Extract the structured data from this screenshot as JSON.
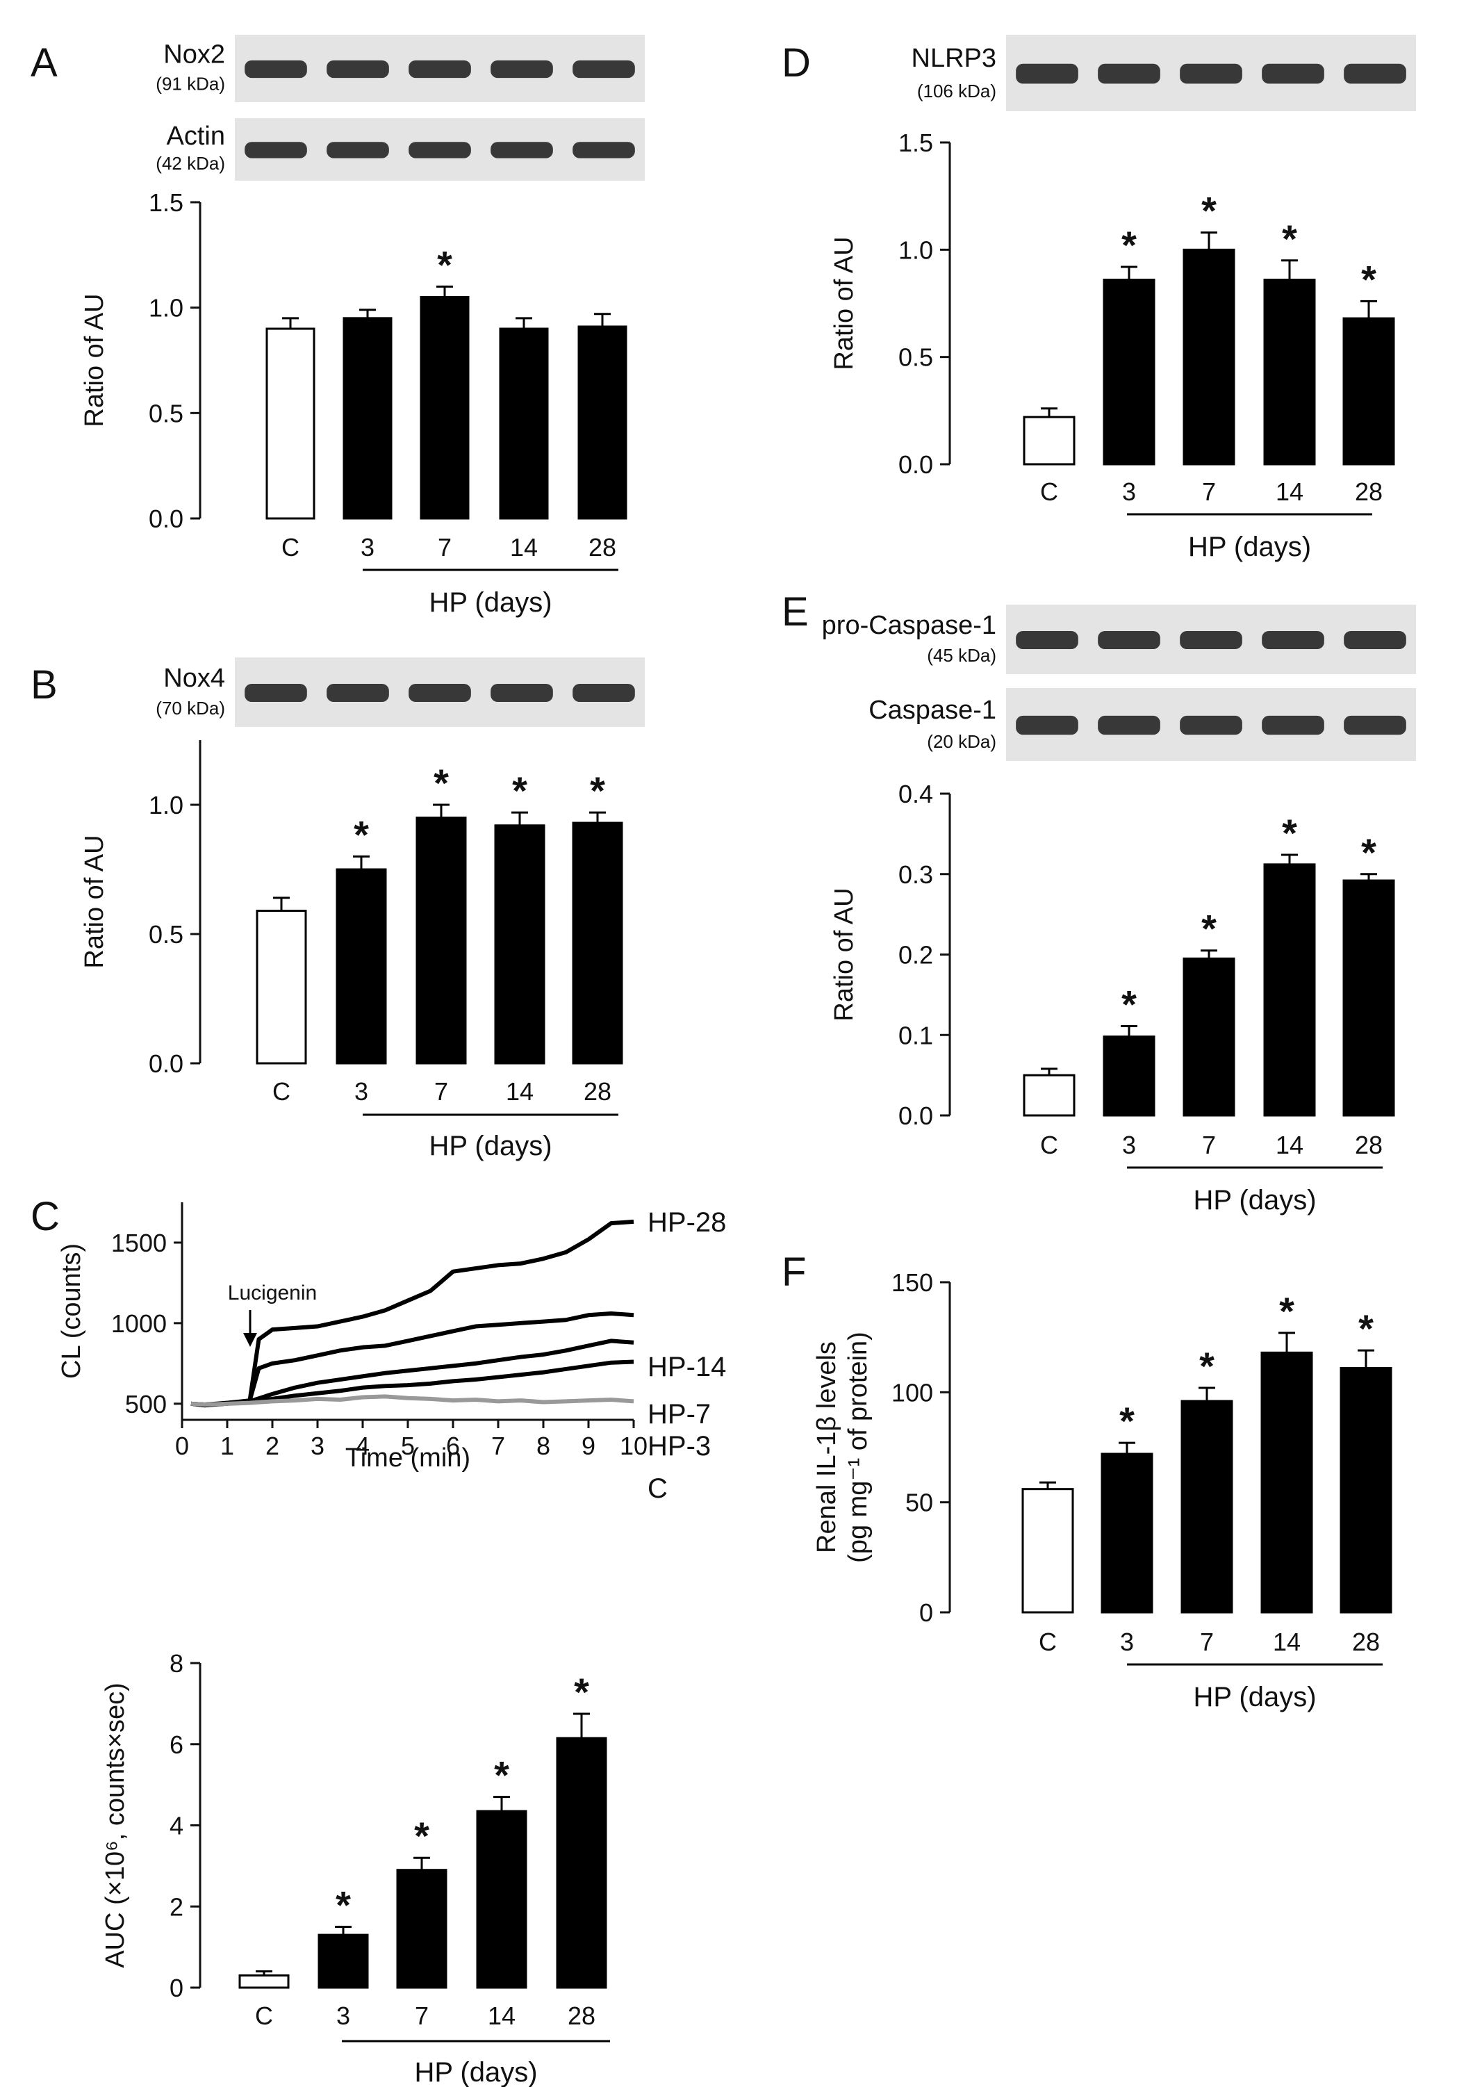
{
  "chart_data": [
    {
      "panel": "A",
      "type": "bar",
      "categories": [
        "C",
        "3",
        "7",
        "14",
        "28"
      ],
      "values": [
        0.9,
        0.95,
        1.05,
        0.9,
        0.91
      ],
      "errors": [
        0.05,
        0.04,
        0.05,
        0.05,
        0.06
      ],
      "significant": [
        false,
        false,
        true,
        false,
        false
      ],
      "ylabel": "Ratio of AU",
      "ylim": [
        0,
        1.5
      ],
      "yticks": [
        "0.0",
        "0.5",
        "1.0",
        "1.5"
      ],
      "group_label": "HP (days)",
      "blots": [
        {
          "name": "Nox2",
          "kda": "(91 kDa)"
        },
        {
          "name": "Actin",
          "kda": "(42 kDa)"
        }
      ]
    },
    {
      "panel": "B",
      "type": "bar",
      "categories": [
        "C",
        "3",
        "7",
        "14",
        "28"
      ],
      "values": [
        0.59,
        0.75,
        0.95,
        0.92,
        0.93
      ],
      "errors": [
        0.05,
        0.05,
        0.05,
        0.05,
        0.04
      ],
      "significant": [
        false,
        true,
        true,
        true,
        true
      ],
      "ylabel": "Ratio of AU",
      "ylim": [
        0,
        1.25
      ],
      "yticks": [
        "0.0",
        "0.5",
        "1.0"
      ],
      "group_label": "HP (days)",
      "blots": [
        {
          "name": "Nox4",
          "kda": "(70 kDa)"
        }
      ]
    },
    {
      "panel": "C",
      "type": "line",
      "xlabel": "Time (min)",
      "ylabel": "CL (counts)",
      "xlim": [
        0,
        10
      ],
      "ylim": [
        400,
        1750
      ],
      "xticks": [
        "0",
        "1",
        "2",
        "3",
        "4",
        "5",
        "6",
        "7",
        "8",
        "9",
        "10"
      ],
      "yticks": [
        "500",
        "1000",
        "1500"
      ],
      "annotation": "Lucigenin",
      "series": [
        {
          "name": "HP-28",
          "x": [
            0.2,
            0.5,
            1.0,
            1.5,
            1.7,
            2.0,
            2.5,
            3.0,
            3.5,
            4.0,
            4.5,
            5.0,
            5.5,
            6.0,
            6.5,
            7.0,
            7.5,
            8.0,
            8.5,
            9.0,
            9.5,
            10.0
          ],
          "y": [
            500,
            490,
            500,
            520,
            900,
            960,
            970,
            980,
            1010,
            1040,
            1080,
            1140,
            1200,
            1320,
            1340,
            1360,
            1370,
            1400,
            1440,
            1520,
            1620,
            1630
          ]
        },
        {
          "name": "HP-14",
          "x": [
            0.2,
            0.5,
            1.0,
            1.5,
            1.7,
            2.0,
            2.5,
            3.0,
            3.5,
            4.0,
            4.5,
            5.0,
            5.5,
            6.0,
            6.5,
            7.0,
            7.5,
            8.0,
            8.5,
            9.0,
            9.5,
            10.0
          ],
          "y": [
            500,
            495,
            505,
            520,
            720,
            750,
            770,
            800,
            830,
            850,
            860,
            890,
            920,
            950,
            980,
            990,
            1000,
            1010,
            1020,
            1050,
            1060,
            1050
          ]
        },
        {
          "name": "HP-7",
          "x": [
            0.2,
            0.5,
            1.0,
            1.5,
            2.0,
            2.5,
            3.0,
            3.5,
            4.0,
            4.5,
            5.0,
            5.5,
            6.0,
            6.5,
            7.0,
            7.5,
            8.0,
            8.5,
            9.0,
            9.5,
            10.0
          ],
          "y": [
            500,
            490,
            505,
            515,
            560,
            600,
            630,
            650,
            670,
            690,
            705,
            720,
            735,
            750,
            770,
            790,
            805,
            830,
            860,
            890,
            880
          ]
        },
        {
          "name": "HP-3",
          "x": [
            0.2,
            0.5,
            1.0,
            1.5,
            2.0,
            2.5,
            3.0,
            3.5,
            4.0,
            4.5,
            5.0,
            5.5,
            6.0,
            6.5,
            7.0,
            7.5,
            8.0,
            8.5,
            9.0,
            9.5,
            10.0
          ],
          "y": [
            500,
            495,
            500,
            510,
            530,
            550,
            565,
            580,
            600,
            610,
            615,
            625,
            640,
            650,
            665,
            680,
            695,
            715,
            735,
            755,
            760
          ]
        },
        {
          "name": "C",
          "color": "#999999",
          "x": [
            0.2,
            0.5,
            1.0,
            1.5,
            2.0,
            2.5,
            3.0,
            3.5,
            4.0,
            4.5,
            5.0,
            5.5,
            6.0,
            6.5,
            7.0,
            7.5,
            8.0,
            8.5,
            9.0,
            9.5,
            10.0
          ],
          "y": [
            500,
            495,
            500,
            505,
            515,
            520,
            530,
            525,
            540,
            545,
            535,
            530,
            520,
            525,
            515,
            520,
            510,
            515,
            520,
            525,
            515
          ]
        }
      ]
    },
    {
      "panel": "C2",
      "type": "bar",
      "categories": [
        "C",
        "3",
        "7",
        "14",
        "28"
      ],
      "values": [
        0.3,
        1.3,
        2.9,
        4.35,
        6.15
      ],
      "errors": [
        0.1,
        0.2,
        0.3,
        0.35,
        0.6
      ],
      "significant": [
        false,
        true,
        true,
        true,
        true
      ],
      "ylabel": "AUC (×10⁶, counts×sec)",
      "ylim": [
        0,
        8
      ],
      "yticks": [
        "0",
        "2",
        "4",
        "6",
        "8"
      ],
      "group_label": "HP (days)"
    },
    {
      "panel": "D",
      "type": "bar",
      "categories": [
        "C",
        "3",
        "7",
        "14",
        "28"
      ],
      "values": [
        0.22,
        0.86,
        1.0,
        0.86,
        0.68
      ],
      "errors": [
        0.04,
        0.06,
        0.08,
        0.09,
        0.08
      ],
      "significant": [
        false,
        true,
        true,
        true,
        true
      ],
      "ylabel": "Ratio of AU",
      "ylim": [
        0,
        1.5
      ],
      "yticks": [
        "0.0",
        "0.5",
        "1.0",
        "1.5"
      ],
      "group_label": "HP (days)",
      "blots": [
        {
          "name": "NLRP3",
          "kda": "(106 kDa)"
        }
      ]
    },
    {
      "panel": "E",
      "type": "bar",
      "categories": [
        "C",
        "3",
        "7",
        "14",
        "28"
      ],
      "values": [
        0.05,
        0.098,
        0.195,
        0.312,
        0.292
      ],
      "errors": [
        0.008,
        0.013,
        0.01,
        0.012,
        0.008
      ],
      "significant": [
        false,
        true,
        true,
        true,
        true
      ],
      "ylabel": "Ratio of AU",
      "ylim": [
        0,
        0.4
      ],
      "yticks": [
        "0.0",
        "0.1",
        "0.2",
        "0.3",
        "0.4"
      ],
      "group_label": "HP (days)",
      "blots": [
        {
          "name": "pro-Caspase-1",
          "kda": "(45 kDa)"
        },
        {
          "name": "Caspase-1",
          "kda": "(20 kDa)"
        }
      ]
    },
    {
      "panel": "F",
      "type": "bar",
      "categories": [
        "C",
        "3",
        "7",
        "14",
        "28"
      ],
      "values": [
        56,
        72,
        96,
        118,
        111
      ],
      "errors": [
        3,
        5,
        6,
        9,
        8
      ],
      "significant": [
        false,
        true,
        true,
        true,
        true
      ],
      "ylabel_line1": "Renal IL-1β levels",
      "ylabel_line2": "(pg mg⁻¹ of protein)",
      "ylim": [
        0,
        150
      ],
      "yticks": [
        "0",
        "50",
        "100",
        "150"
      ],
      "group_label": "HP (days)"
    }
  ],
  "panel_labels": [
    "A",
    "B",
    "C",
    "D",
    "E",
    "F"
  ],
  "colors": {
    "control_fill": "#ffffff",
    "hp_fill": "#000000",
    "control_trace": "#999999",
    "axis": "#111111",
    "blot_bg": "#e4e4e4",
    "band": "#1a1a1a"
  }
}
